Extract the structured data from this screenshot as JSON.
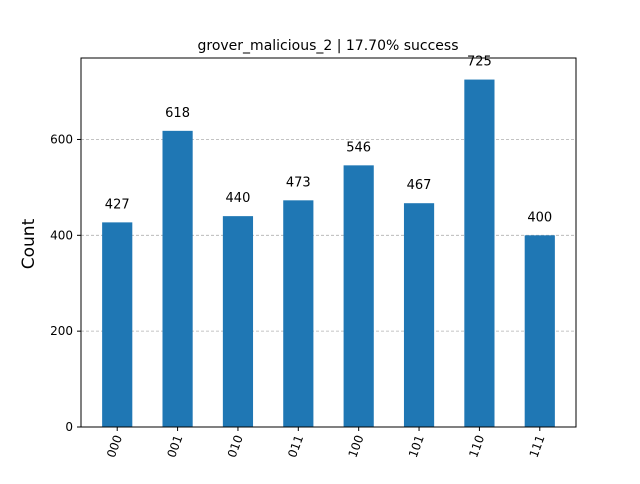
{
  "chart_data": {
    "type": "bar",
    "title": "grover_malicious_2 | 17.70% success",
    "xlabel": "",
    "ylabel": "Count",
    "categories": [
      "000",
      "001",
      "010",
      "011",
      "100",
      "101",
      "110",
      "111"
    ],
    "values": [
      427,
      618,
      440,
      473,
      546,
      467,
      725,
      400
    ],
    "ylim": [
      0,
      770
    ],
    "yticks": [
      0,
      200,
      400,
      600
    ],
    "grid": "horizontal dashed",
    "bar_color": "#1f77b4",
    "grid_color": "#b0b0b0"
  }
}
